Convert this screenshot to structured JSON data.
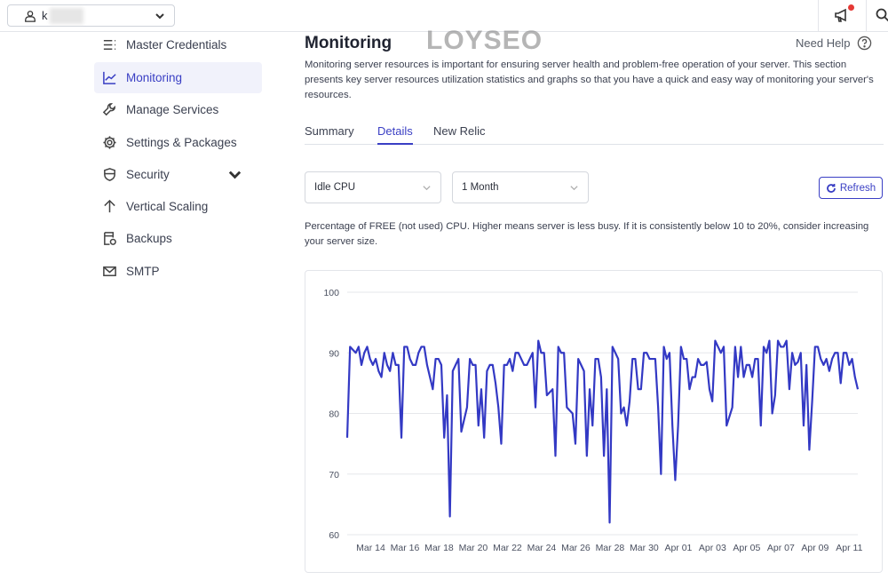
{
  "topbar": {
    "user_initial": "k",
    "watermark": "LOYSEO"
  },
  "sidebar": {
    "items": [
      {
        "label": "Master Credentials",
        "icon": "list-icon"
      },
      {
        "label": "Monitoring",
        "icon": "chart-line-icon",
        "active": true
      },
      {
        "label": "Manage Services",
        "icon": "wrench-icon"
      },
      {
        "label": "Settings & Packages",
        "icon": "gear-icon"
      },
      {
        "label": "Security",
        "icon": "shield-icon",
        "expandable": true
      },
      {
        "label": "Vertical Scaling",
        "icon": "arrow-up-icon"
      },
      {
        "label": "Backups",
        "icon": "backup-icon"
      },
      {
        "label": "SMTP",
        "icon": "mail-icon"
      }
    ]
  },
  "main": {
    "title": "Monitoring",
    "help": "Need Help",
    "description": "Monitoring server resources is important for ensuring server health and problem-free operation of your server. This section presents key server resources utilization statistics and graphs so that you have a quick and easy way of monitoring your server's resources.",
    "tabs": [
      {
        "label": "Summary"
      },
      {
        "label": "Details",
        "active": true
      },
      {
        "label": "New Relic"
      }
    ],
    "metric_select": "Idle CPU",
    "range_select": "1 Month",
    "refresh": "Refresh",
    "note": "Percentage of FREE (not used) CPU. Higher means server is less busy. If it is consistently below 10 to 20%, consider increasing your server size.",
    "accent": "#3a3fc4"
  },
  "chart_data": {
    "type": "line",
    "color": "#3339c4",
    "grid": true,
    "ylim": [
      60,
      100
    ],
    "yticks": [
      100,
      90,
      80,
      70,
      60
    ],
    "xticks": [
      "Mar 14",
      "Mar 16",
      "Mar 18",
      "Mar 20",
      "Mar 22",
      "Mar 24",
      "Mar 26",
      "Mar 28",
      "Mar 30",
      "Apr 01",
      "Apr 03",
      "Apr 05",
      "Apr 07",
      "Apr 09",
      "Apr 11"
    ],
    "x_start": "Mar 12 15:00",
    "x_end": "Apr 11 12:00",
    "values": [
      76,
      91,
      90.5,
      90,
      91,
      88,
      90,
      91,
      89,
      88,
      89,
      87,
      86,
      90,
      88,
      87,
      90,
      88,
      88,
      76,
      91,
      91,
      89,
      88,
      88,
      90,
      91,
      91,
      88,
      86,
      84,
      89,
      89,
      88,
      76,
      83,
      63,
      87,
      88,
      89,
      77,
      79,
      81,
      89,
      88,
      88,
      78,
      84,
      76,
      87,
      88,
      88,
      85,
      81,
      75,
      88,
      88,
      89,
      87,
      90,
      90,
      89,
      88,
      88,
      89,
      90,
      81,
      92,
      90,
      90,
      83,
      83.5,
      84,
      73,
      91,
      90,
      90,
      81,
      80.5,
      80,
      75,
      89,
      88,
      87,
      73,
      84,
      78,
      89,
      89,
      86,
      73,
      84,
      62,
      91,
      90,
      89,
      80,
      81,
      78,
      82,
      89,
      89,
      84,
      84,
      90,
      90,
      89,
      89,
      89,
      81,
      70,
      91,
      89,
      90,
      78,
      69,
      78,
      91,
      89,
      89,
      84,
      86,
      86,
      89,
      88,
      88,
      88.5,
      84,
      82,
      92,
      91,
      90,
      91,
      78,
      79.5,
      81,
      91,
      86,
      91,
      86,
      88,
      88,
      86,
      89,
      89,
      78,
      91,
      90,
      92,
      80,
      83,
      92,
      91,
      91,
      92,
      84,
      90,
      88,
      88.5,
      90,
      78,
      88,
      74,
      82,
      91,
      91,
      89,
      88,
      89,
      87,
      89,
      90,
      90,
      85,
      90,
      90,
      88,
      89,
      86,
      84
    ]
  }
}
